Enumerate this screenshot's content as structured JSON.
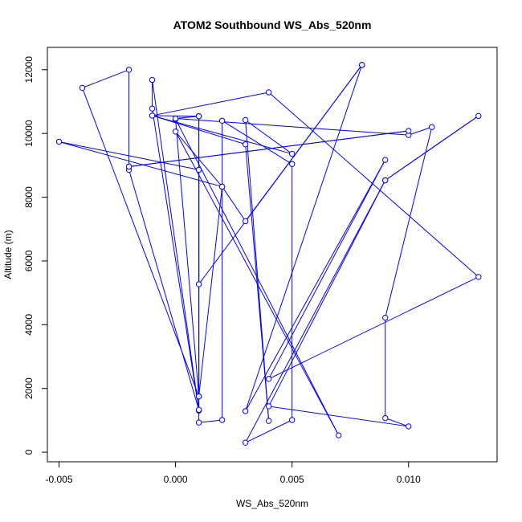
{
  "chart_data": {
    "type": "line",
    "title": "ATOM2 Southbound WS_Abs_520nm",
    "xlabel": "WS_Abs_520nm",
    "ylabel": "Altitude (m)",
    "xlim": [
      -0.0055,
      0.0138
    ],
    "ylim": [
      -300,
      12700
    ],
    "x_ticks": [
      -0.005,
      0.0,
      0.005,
      0.01
    ],
    "x_tick_labels": [
      "-0.005",
      "0.000",
      "0.005",
      "0.010"
    ],
    "y_ticks": [
      0,
      2000,
      4000,
      6000,
      8000,
      10000,
      12000
    ],
    "y_tick_labels": [
      "0",
      "2000",
      "4000",
      "6000",
      "8000",
      "10000",
      "12000"
    ],
    "grid": false,
    "legend": "none",
    "series": [
      {
        "color": "#0000ff",
        "marker": "open-circle",
        "points": [
          {
            "x": 0.008,
            "y": 12150
          },
          {
            "x": 0.001,
            "y": 5270
          },
          {
            "x": 0.001,
            "y": 8860
          },
          {
            "x": 0.001,
            "y": 1750
          },
          {
            "x": 0.0,
            "y": 10450
          },
          {
            "x": 0.007,
            "y": 530
          },
          {
            "x": 0.0,
            "y": 10060
          },
          {
            "x": 0.002,
            "y": 8330
          },
          {
            "x": 0.003,
            "y": 7250
          },
          {
            "x": 0.008,
            "y": 12150
          },
          {
            "x": 0.003,
            "y": 1290
          },
          {
            "x": 0.009,
            "y": 9170
          },
          {
            "x": 0.004,
            "y": 2300
          },
          {
            "x": 0.013,
            "y": 5500
          },
          {
            "x": 0.004,
            "y": 11290
          },
          {
            "x": -0.001,
            "y": 10560
          },
          {
            "x": 0.005,
            "y": 9360
          },
          {
            "x": 0.003,
            "y": 10420
          },
          {
            "x": 0.004,
            "y": 980
          },
          {
            "x": 0.003,
            "y": 9660
          },
          {
            "x": -0.001,
            "y": 10560
          },
          {
            "x": 0.001,
            "y": 10540
          },
          {
            "x": 0.001,
            "y": 1310
          },
          {
            "x": -0.001,
            "y": 10780
          },
          {
            "x": -0.001,
            "y": 11680
          },
          {
            "x": 0.001,
            "y": 1310
          },
          {
            "x": 0.001,
            "y": 930
          },
          {
            "x": 0.002,
            "y": 1010
          },
          {
            "x": 0.002,
            "y": 10400
          },
          {
            "x": 0.005,
            "y": 9040
          },
          {
            "x": 0.005,
            "y": 1010
          },
          {
            "x": 0.003,
            "y": 300
          },
          {
            "x": 0.009,
            "y": 8530
          },
          {
            "x": 0.013,
            "y": 10550
          },
          {
            "x": 0.009,
            "y": 8530
          },
          {
            "x": 0.004,
            "y": 1440
          },
          {
            "x": 0.01,
            "y": 810
          },
          {
            "x": 0.009,
            "y": 1070
          },
          {
            "x": 0.009,
            "y": 4220
          },
          {
            "x": 0.011,
            "y": 10200
          },
          {
            "x": 0.01,
            "y": 9950
          },
          {
            "x": 0.0,
            "y": 10470
          },
          {
            "x": 0.001,
            "y": 10540
          },
          {
            "x": 0.001,
            "y": 1330
          },
          {
            "x": -0.002,
            "y": 8860
          },
          {
            "x": -0.002,
            "y": 8960
          },
          {
            "x": 0.01,
            "y": 10080
          },
          {
            "x": -0.002,
            "y": 8960
          },
          {
            "x": -0.002,
            "y": 12000
          },
          {
            "x": -0.004,
            "y": 11430
          },
          {
            "x": 0.001,
            "y": 1750
          },
          {
            "x": 0.002,
            "y": 8330
          },
          {
            "x": -0.005,
            "y": 9740
          },
          {
            "x": 0.001,
            "y": 8860
          }
        ]
      }
    ]
  }
}
